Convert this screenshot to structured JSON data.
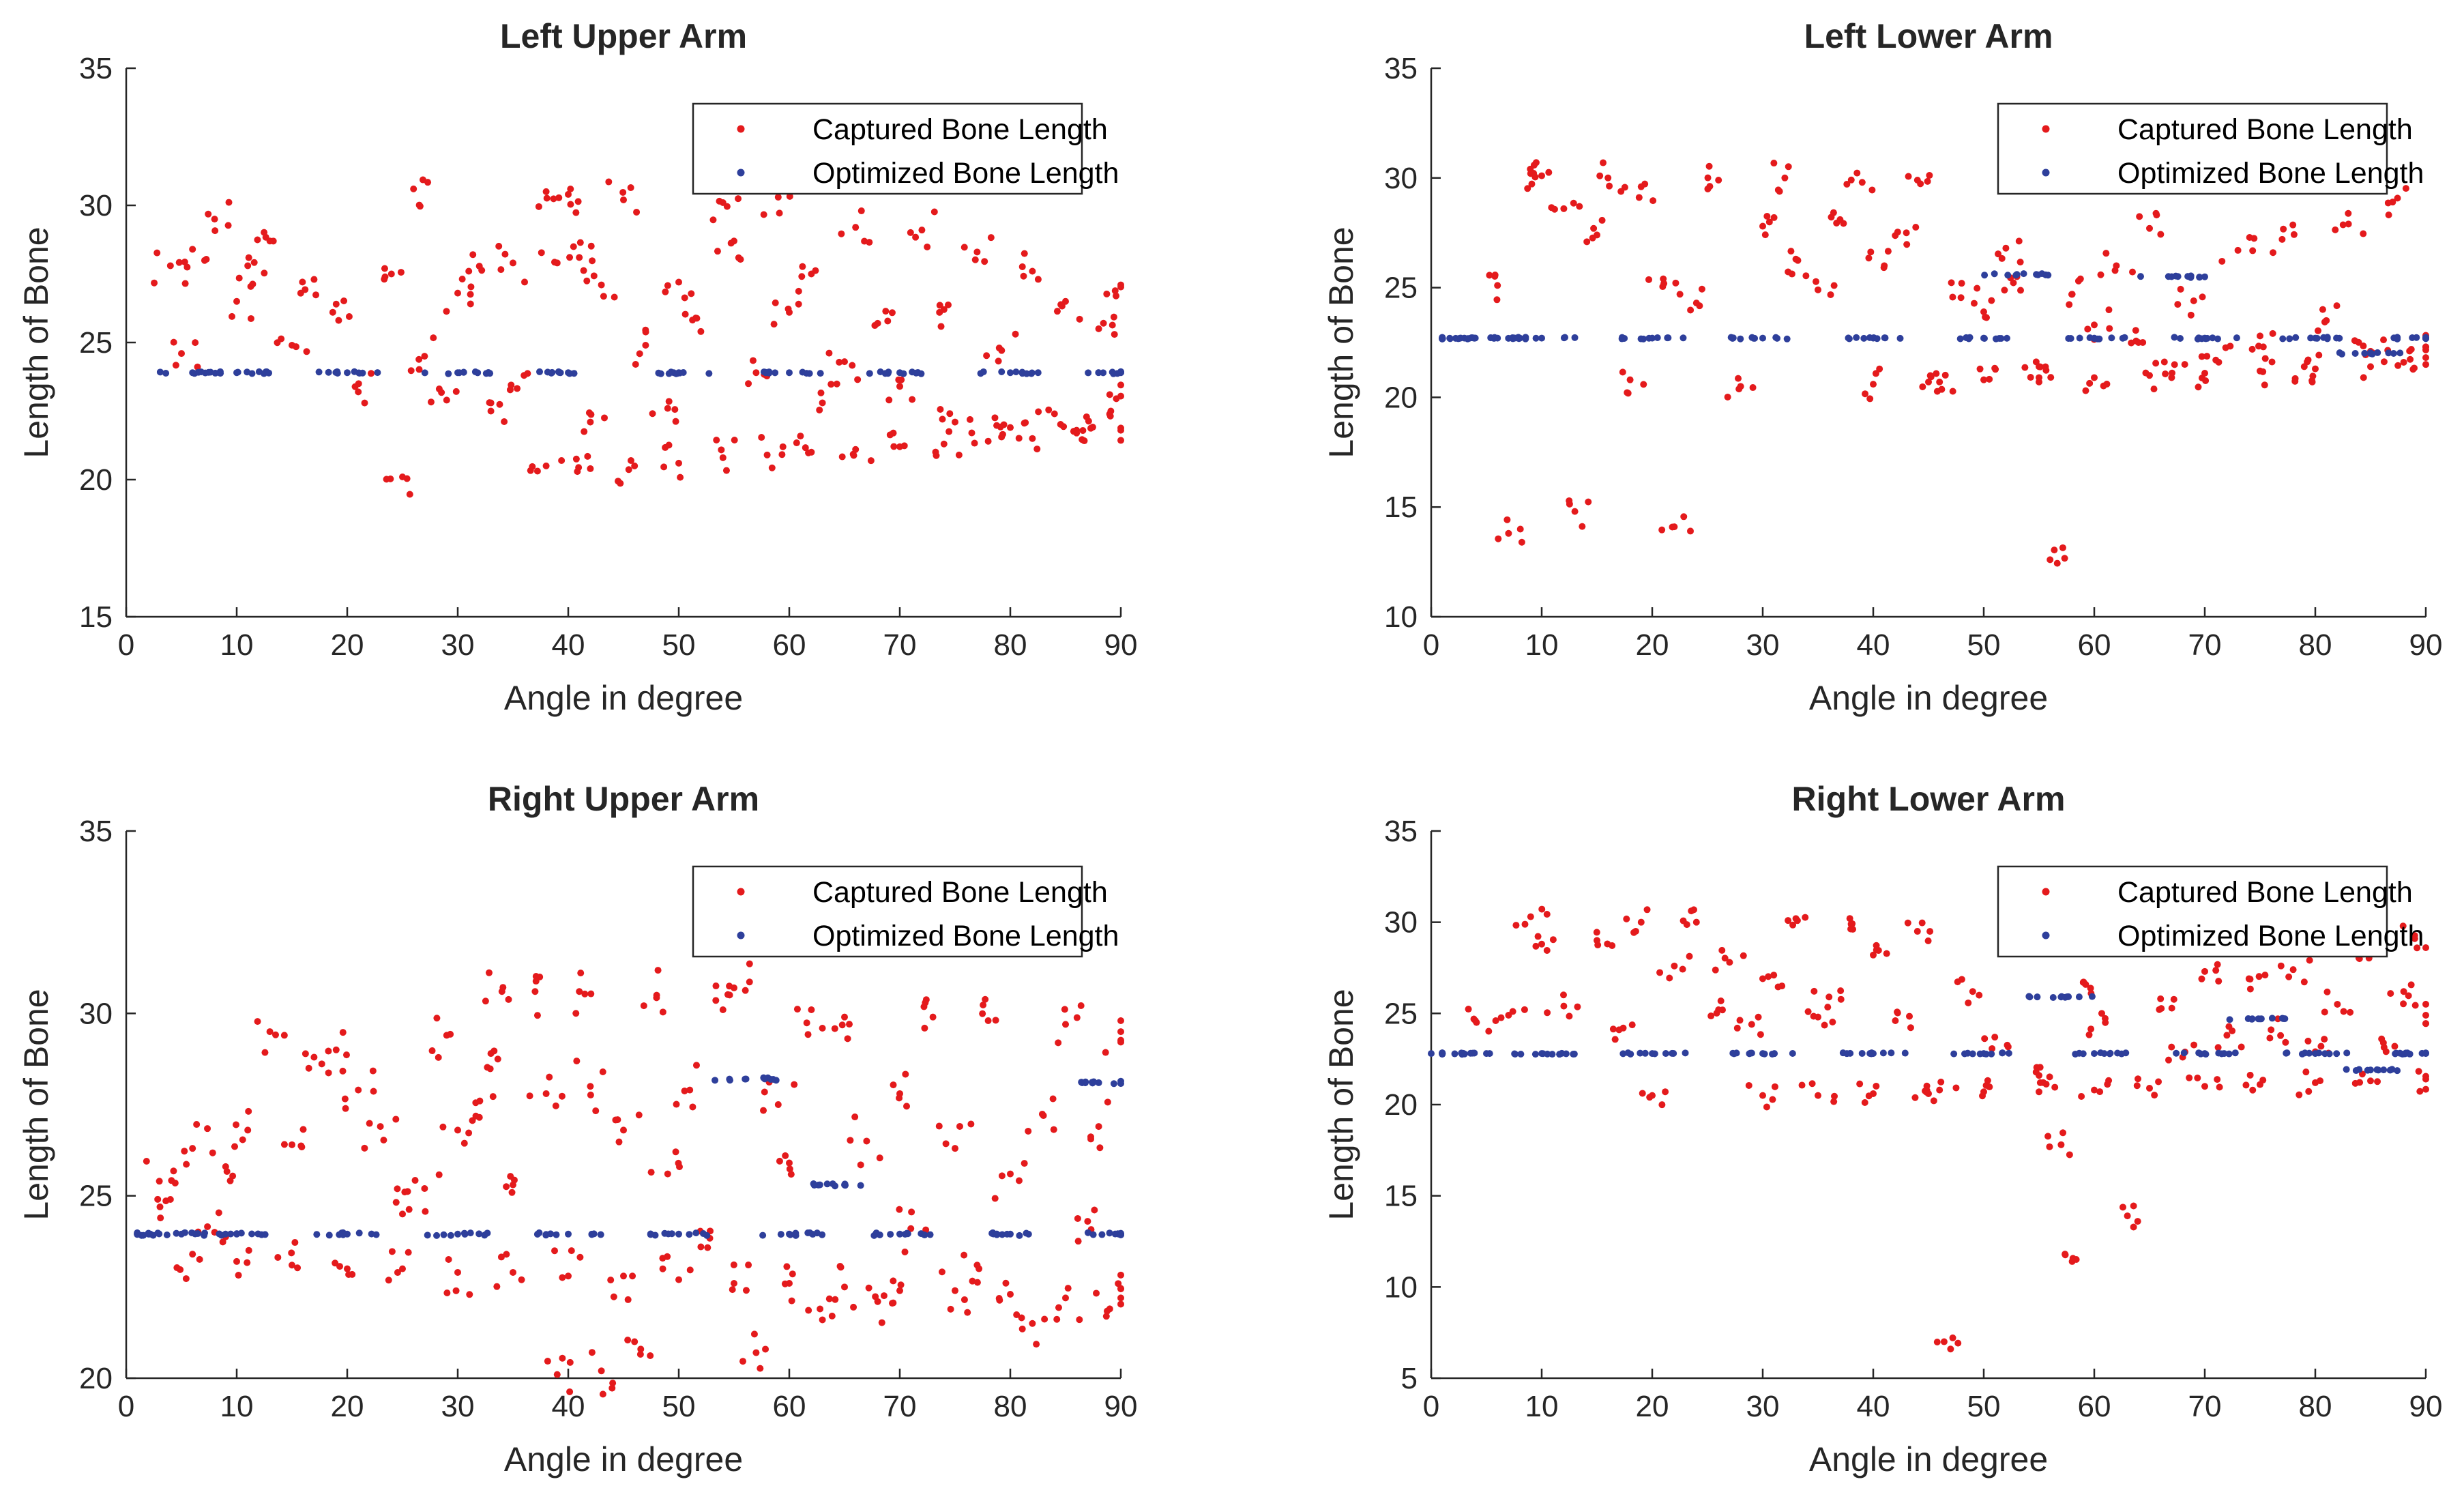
{
  "colors": {
    "captured": "#e41a1c",
    "optimized": "#2e3f9b",
    "axis": "#262626"
  },
  "legend_entries": [
    "Captured Bone Length",
    "Optimized Bone Length"
  ],
  "chart_data": [
    {
      "type": "scatter",
      "title": "Left Upper Arm",
      "xlabel": "Angle in degree",
      "ylabel": "Length of Bone",
      "xlim": [
        0,
        90
      ],
      "ylim": [
        15,
        35
      ],
      "xticks": [
        0,
        10,
        20,
        30,
        40,
        50,
        60,
        70,
        80,
        90
      ],
      "yticks": [
        15,
        20,
        25,
        30,
        35
      ],
      "legend": "top-right",
      "series": [
        {
          "name": "Captured Bone Length",
          "color": "#e41a1c",
          "x": [
            4,
            5,
            6,
            8,
            10,
            11,
            13,
            15,
            17,
            19,
            21,
            24,
            25,
            26,
            27,
            29,
            30,
            31,
            33,
            35,
            36,
            38,
            39,
            40,
            41,
            42,
            43,
            45,
            47,
            49,
            50,
            52,
            54,
            55,
            57,
            59,
            60,
            62,
            63,
            65,
            66,
            68,
            70,
            72,
            74,
            75,
            77,
            79,
            80,
            82,
            84,
            85,
            86,
            88,
            89,
            90
          ],
          "y": [
            27.8,
            24.6,
            28.4,
            29.5,
            26.5,
            27.8,
            28.7,
            24.9,
            27.3,
            26.4,
            23.2,
            27.5,
            20.1,
            30.6,
            24.5,
            22.9,
            26.8,
            27.6,
            22.5,
            27.9,
            23.8,
            30.5,
            27.9,
            30.4,
            28.1,
            22.1,
            27.1,
            30.2,
            24.9,
            22.6,
            27.2,
            25.4,
            30.1,
            28.7,
            23.9,
            30.3,
            26.1,
            27.5,
            22.8,
            24.3,
            29.2,
            25.7,
            23.4,
            29.1,
            26.2,
            22.1,
            28.3,
            24.8,
            21.9,
            27.6,
            22.4,
            26.5,
            21.8,
            25.5,
            23.1,
            27.1
          ]
        },
        {
          "name": "Captured Bone Length",
          "color": "#e41a1c",
          "x": [
            38,
            42,
            46,
            50,
            54,
            58,
            62,
            66,
            70,
            74,
            78,
            82,
            86,
            90
          ],
          "y": [
            20.5,
            20.4,
            20.5,
            20.6,
            20.8,
            20.9,
            21.0,
            21.1,
            21.2,
            21.3,
            21.4,
            21.5,
            21.7,
            21.8
          ]
        },
        {
          "name": "Optimized Bone Length",
          "color": "#2e3f9b",
          "x": [
            6,
            10,
            20,
            30,
            40,
            50,
            60,
            70,
            80,
            90
          ],
          "y": [
            23.9,
            23.9,
            23.9,
            23.9,
            23.9,
            23.9,
            23.9,
            23.9,
            23.9,
            23.9
          ]
        }
      ]
    },
    {
      "type": "scatter",
      "title": "Left Lower Arm",
      "xlabel": "Angle in degree",
      "ylabel": "Length of Bone",
      "xlim": [
        0,
        90
      ],
      "ylim": [
        10,
        35
      ],
      "xticks": [
        0,
        10,
        20,
        30,
        40,
        50,
        60,
        70,
        80,
        90
      ],
      "yticks": [
        10,
        15,
        20,
        25,
        30,
        35
      ],
      "legend": "top-right",
      "series": [
        {
          "name": "Captured Bone Length",
          "color": "#e41a1c",
          "x": [
            6,
            7,
            9,
            10,
            12,
            13,
            15,
            16,
            18,
            19,
            21,
            22,
            24,
            26,
            28,
            30,
            32,
            33,
            35,
            37,
            39,
            41,
            43,
            44,
            46,
            48,
            50,
            52,
            53,
            55,
            56,
            58,
            60,
            62,
            64,
            65,
            67,
            69,
            71,
            73,
            75,
            77,
            79,
            81,
            83,
            85,
            87,
            88,
            90
          ],
          "y": [
            25.1,
            13.8,
            30.2,
            30.1,
            28.6,
            14.8,
            27.4,
            30.0,
            20.8,
            29.6,
            25.4,
            14.1,
            24.3,
            29.9,
            20.5,
            27.8,
            30.0,
            26.3,
            24.9,
            28.1,
            29.8,
            26.0,
            27.5,
            29.9,
            20.7,
            25.2,
            23.9,
            26.8,
            25.5,
            21.4,
            12.6,
            24.7,
            23.3,
            26.0,
            22.5,
            27.7,
            20.9,
            24.4,
            21.7,
            26.7,
            22.8,
            27.2,
            21.4,
            23.5,
            27.9,
            22.1,
            28.9,
            21.6,
            22.3
          ]
        },
        {
          "name": "Captured Bone Length",
          "color": "#e41a1c",
          "x": [
            40,
            45,
            50,
            55,
            60,
            65,
            70,
            75,
            80,
            85,
            90
          ],
          "y": [
            20.6,
            20.7,
            20.8,
            20.9,
            20.9,
            21.0,
            21.1,
            21.2,
            21.3,
            21.4,
            21.5
          ]
        },
        {
          "name": "Optimized Bone Length",
          "color": "#2e3f9b",
          "x": [
            1,
            3,
            6,
            10,
            20,
            30,
            40,
            50,
            53,
            60,
            67,
            70,
            80,
            85,
            90
          ],
          "y": [
            22.7,
            22.7,
            22.7,
            22.7,
            22.7,
            22.7,
            22.7,
            22.7,
            25.6,
            22.7,
            25.5,
            22.7,
            22.7,
            22.0,
            22.7
          ]
        }
      ]
    },
    {
      "type": "scatter",
      "title": "Right Upper Arm",
      "xlabel": "Angle in degree",
      "ylabel": "Length of Bone",
      "xlim": [
        0,
        90
      ],
      "ylim": [
        20,
        35
      ],
      "xticks": [
        0,
        10,
        20,
        30,
        40,
        50,
        60,
        70,
        80,
        90
      ],
      "yticks": [
        20,
        25,
        30,
        35
      ],
      "legend": "top-right",
      "series": [
        {
          "name": "Captured Bone Length",
          "color": "#e41a1c",
          "x": [
            3,
            4,
            6,
            8,
            9,
            11,
            13,
            15,
            17,
            19,
            21,
            23,
            25,
            27,
            29,
            30,
            32,
            33,
            34,
            35,
            37,
            38,
            39,
            41,
            42,
            43,
            45,
            46,
            48,
            49,
            51,
            52,
            54,
            55,
            57,
            59,
            60,
            62,
            63,
            65,
            67,
            68,
            70,
            71,
            73,
            75,
            77,
            78,
            80,
            82,
            83,
            85,
            87,
            88,
            89,
            90
          ],
          "y": [
            25.4,
            24.9,
            26.3,
            24.0,
            25.8,
            26.8,
            29.5,
            26.4,
            28.8,
            29.0,
            27.9,
            26.9,
            24.5,
            25.2,
            29.4,
            26.8,
            27.6,
            28.9,
            30.6,
            25.3,
            30.6,
            27.8,
            20.1,
            30.6,
            28.0,
            20.2,
            26.8,
            21.0,
            30.5,
            25.6,
            27.9,
            23.6,
            30.1,
            30.7,
            20.7,
            27.5,
            25.9,
            30.1,
            21.6,
            29.9,
            26.5,
            22.1,
            27.8,
            24.1,
            29.9,
            26.3,
            23.1,
            29.8,
            25.6,
            21.5,
            27.2,
            29.7,
            24.3,
            26.9,
            21.9,
            29.5
          ]
        },
        {
          "name": "Captured Bone Length",
          "color": "#e41a1c",
          "x": [
            6,
            10,
            15,
            20,
            25,
            30,
            35,
            40,
            45,
            50,
            55,
            60,
            65,
            70,
            75,
            80,
            85,
            90
          ],
          "y": [
            23.4,
            23.2,
            23.1,
            23.0,
            23.0,
            22.9,
            22.9,
            22.8,
            22.8,
            22.7,
            22.6,
            22.6,
            22.5,
            22.4,
            22.4,
            22.3,
            22.2,
            22.2
          ]
        },
        {
          "name": "Optimized Bone Length",
          "color": "#2e3f9b",
          "x": [
            1,
            5,
            10,
            20,
            30,
            40,
            50,
            56,
            60,
            65,
            70,
            80,
            88,
            90
          ],
          "y": [
            23.95,
            23.95,
            23.95,
            23.95,
            23.95,
            23.95,
            23.95,
            28.2,
            23.95,
            25.3,
            23.95,
            23.95,
            28.1,
            23.95
          ]
        }
      ]
    },
    {
      "type": "scatter",
      "title": "Right Lower Arm",
      "xlabel": "Angle in degree",
      "ylabel": "Length of Bone",
      "xlim": [
        0,
        90
      ],
      "ylim": [
        5,
        35
      ],
      "xticks": [
        0,
        10,
        20,
        30,
        40,
        50,
        60,
        70,
        80,
        90
      ],
      "yticks": [
        5,
        10,
        15,
        20,
        25,
        30,
        35
      ],
      "legend": "top-right",
      "series": [
        {
          "name": "Captured Bone Length",
          "color": "#e41a1c",
          "x": [
            4,
            7,
            9,
            10,
            12,
            15,
            17,
            19,
            20,
            22,
            24,
            26,
            27,
            29,
            31,
            33,
            35,
            36,
            38,
            40,
            42,
            44,
            46,
            47,
            49,
            51,
            53,
            55,
            57,
            58,
            59,
            61,
            63,
            64,
            66,
            68,
            70,
            72,
            74,
            76,
            78,
            80,
            82,
            84,
            86,
            88,
            89,
            90
          ],
          "y": [
            24.6,
            24.9,
            30.3,
            28.8,
            25.4,
            29.0,
            24.1,
            30.0,
            20.5,
            27.6,
            30.0,
            25.2,
            27.8,
            24.4,
            27.1,
            30.2,
            24.8,
            25.9,
            29.9,
            28.2,
            24.6,
            29.5,
            20.8,
            6.6,
            26.2,
            23.7,
            29.1,
            21.6,
            17.8,
            11.4,
            26.7,
            24.5,
            13.9,
            30.0,
            25.8,
            22.6,
            27.3,
            23.8,
            26.9,
            24.1,
            27.4,
            22.9,
            25.5,
            28.0,
            23.6,
            26.2,
            29.1,
            24.9
          ]
        },
        {
          "name": "Captured Bone Length",
          "color": "#e41a1c",
          "x": [
            30,
            35,
            40,
            45,
            50,
            55,
            60,
            65,
            70,
            75,
            80,
            85,
            90
          ],
          "y": [
            20.5,
            20.5,
            20.6,
            20.6,
            20.7,
            20.7,
            20.8,
            20.9,
            21.0,
            21.1,
            21.2,
            21.3,
            21.4
          ]
        },
        {
          "name": "Optimized Bone Length",
          "color": "#2e3f9b",
          "x": [
            0,
            5,
            10,
            20,
            30,
            40,
            50,
            57,
            60,
            70,
            75,
            80,
            85,
            90
          ],
          "y": [
            22.8,
            22.8,
            22.8,
            22.8,
            22.8,
            22.8,
            22.8,
            25.9,
            22.8,
            22.8,
            24.7,
            22.8,
            21.9,
            22.8
          ]
        }
      ]
    }
  ]
}
